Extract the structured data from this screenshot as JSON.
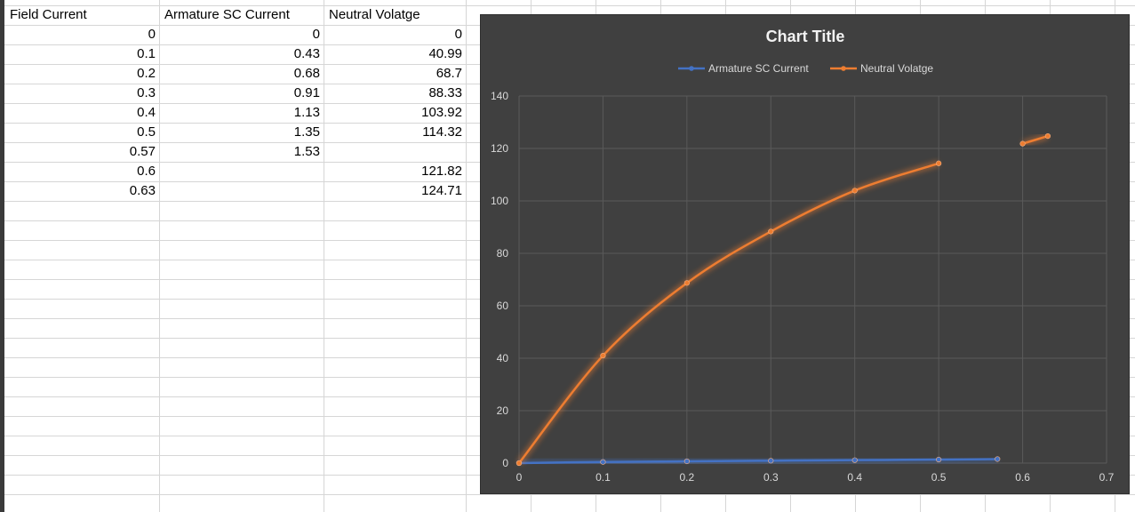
{
  "spreadsheet": {
    "headers": [
      "Field Current",
      "Armature SC Current",
      "Neutral Volatge"
    ],
    "rows": [
      [
        "0",
        "0",
        "0"
      ],
      [
        "0.1",
        "0.43",
        "40.99"
      ],
      [
        "0.2",
        "0.68",
        "68.7"
      ],
      [
        "0.3",
        "0.91",
        "88.33"
      ],
      [
        "0.4",
        "1.13",
        "103.92"
      ],
      [
        "0.5",
        "1.35",
        "114.32"
      ],
      [
        "0.57",
        "1.53",
        ""
      ],
      [
        "0.6",
        "",
        "121.82"
      ],
      [
        "0.63",
        "",
        "124.71"
      ]
    ]
  },
  "chart_data": {
    "type": "line",
    "title": "Chart Title",
    "xlabel": "",
    "ylabel": "",
    "xlim": [
      0,
      0.7
    ],
    "ylim": [
      0,
      140
    ],
    "xticks": [
      "0",
      "0.1",
      "0.2",
      "0.3",
      "0.4",
      "0.5",
      "0.6",
      "0.7"
    ],
    "yticks": [
      "0",
      "20",
      "40",
      "60",
      "80",
      "100",
      "120",
      "140"
    ],
    "grid": true,
    "legend_position": "top",
    "x": [
      0,
      0.1,
      0.2,
      0.3,
      0.4,
      0.5,
      0.57,
      0.6,
      0.63
    ],
    "series": [
      {
        "name": "Armature SC Current",
        "color": "#4472c4",
        "values": [
          0,
          0.43,
          0.68,
          0.91,
          1.13,
          1.35,
          1.53,
          null,
          null
        ]
      },
      {
        "name": "Neutral Volatge",
        "color": "#ed7d31",
        "values": [
          0,
          40.99,
          68.7,
          88.33,
          103.92,
          114.32,
          null,
          121.82,
          124.71
        ]
      }
    ]
  },
  "colors": {
    "chart_background": "#404040",
    "gridline": "#5a5a5a",
    "axis_text": "#d9d9d9",
    "title_text": "#f2f2f2"
  }
}
